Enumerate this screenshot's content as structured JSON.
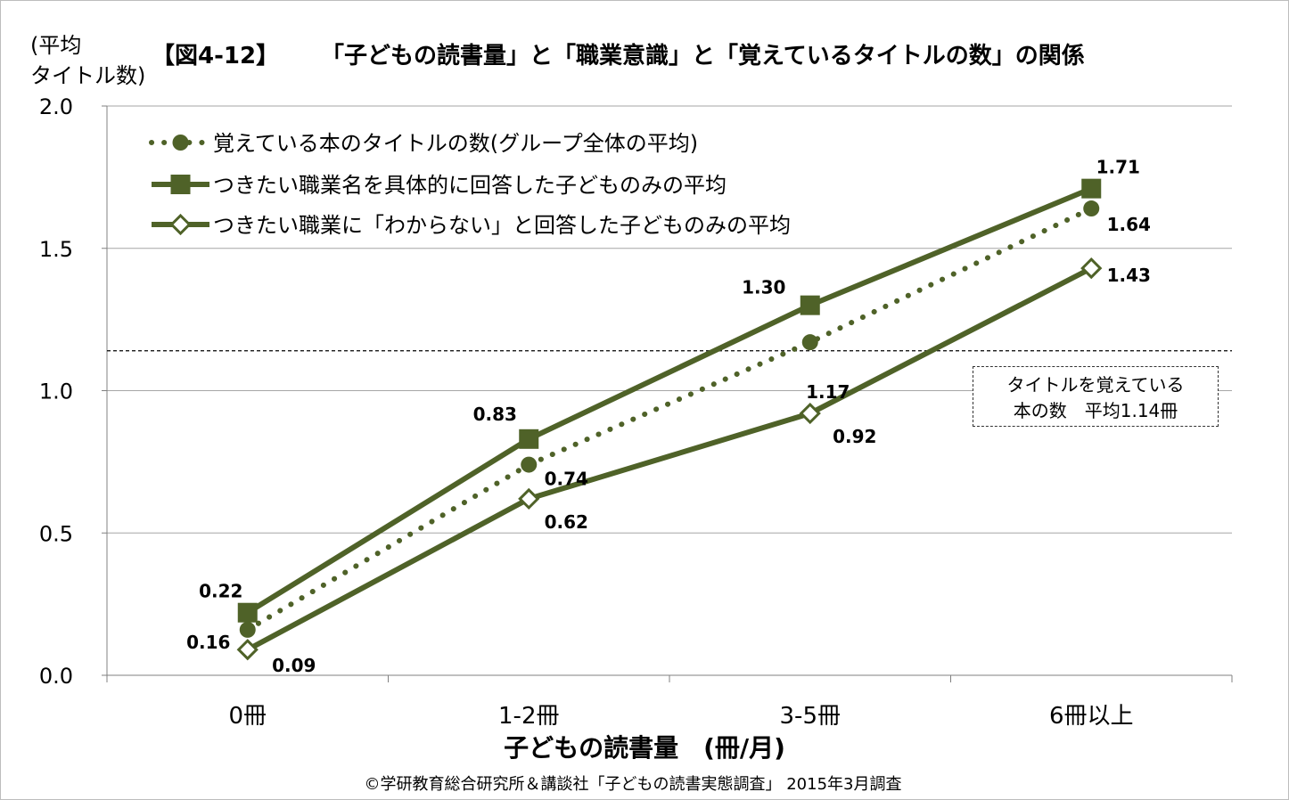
{
  "header": {
    "y_axis_label": "(平均\nタイトル数)",
    "figure_number": "【図4-12】",
    "title": "「子どもの読書量」と「職業意識」と「覚えているタイトルの数」の関係"
  },
  "footer": {
    "source": "©学研教育総合研究所＆講談社「子どもの読書実態調査」 2015年3月調査"
  },
  "annotation": {
    "line1": "タイトルを覚えている",
    "line2": "本の数　平均1.14冊",
    "reference_value": 1.14
  },
  "colors": {
    "series": "#4f6228",
    "grid": "#a6a6a6",
    "axis": "#808080"
  },
  "chart_data": {
    "type": "line",
    "title": "「子どもの読書量」と「職業意識」と「覚えているタイトルの数」の関係",
    "xlabel": "子どもの読書量　(冊/月)",
    "ylabel": "(平均\nタイトル数)",
    "categories": [
      "0冊",
      "1-2冊",
      "3-5冊",
      "6冊以上"
    ],
    "ylim": [
      0,
      2
    ],
    "yticks": [
      "0.0",
      "0.5",
      "1.0",
      "1.5",
      "2.0"
    ],
    "grid": true,
    "legend_position": "top-left",
    "reference_line": 1.14,
    "series": [
      {
        "name": "覚えている本のタイトルの数(グループ全体の平均)",
        "values": [
          0.16,
          0.74,
          1.17,
          1.64
        ],
        "labels": [
          "0.16",
          "0.74",
          "1.17",
          "1.64"
        ],
        "style": "dotted",
        "marker": "circle"
      },
      {
        "name": "つきたい職業名を具体的に回答した子どものみの平均",
        "values": [
          0.22,
          0.83,
          1.3,
          1.71
        ],
        "labels": [
          "0.22",
          "0.83",
          "1.30",
          "1.71"
        ],
        "style": "solid",
        "marker": "square"
      },
      {
        "name": "つきたい職業に「わからない」と回答した子どものみの平均",
        "values": [
          0.09,
          0.62,
          0.92,
          1.43
        ],
        "labels": [
          "0.09",
          "0.62",
          "0.92",
          "1.43"
        ],
        "style": "solid",
        "marker": "diamond-open"
      }
    ]
  }
}
